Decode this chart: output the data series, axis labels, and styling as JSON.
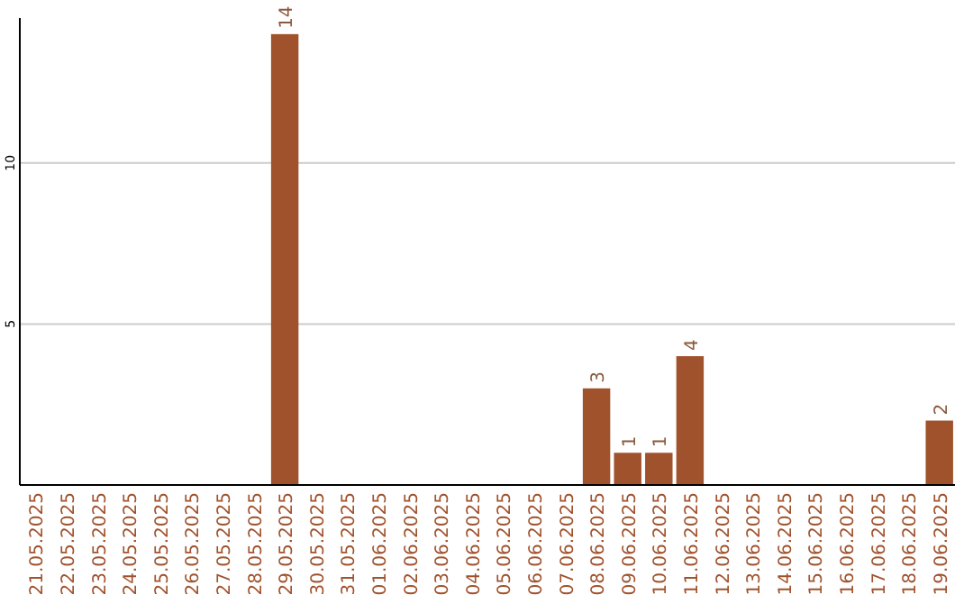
{
  "chart_data": {
    "type": "bar",
    "categories": [
      "21.05.2025",
      "22.05.2025",
      "23.05.2025",
      "24.05.2025",
      "25.05.2025",
      "26.05.2025",
      "27.05.2025",
      "28.05.2025",
      "29.05.2025",
      "30.05.2025",
      "31.05.2025",
      "01.06.2025",
      "02.06.2025",
      "03.06.2025",
      "04.06.2025",
      "05.06.2025",
      "06.06.2025",
      "07.06.2025",
      "08.06.2025",
      "09.06.2025",
      "10.06.2025",
      "11.06.2025",
      "12.06.2025",
      "13.06.2025",
      "14.06.2025",
      "15.06.2025",
      "16.06.2025",
      "17.06.2025",
      "18.06.2025",
      "19.06.2025"
    ],
    "values": [
      0,
      0,
      0,
      0,
      0,
      0,
      0,
      0,
      14,
      0,
      0,
      0,
      0,
      0,
      0,
      0,
      0,
      0,
      3,
      1,
      1,
      4,
      0,
      0,
      0,
      0,
      0,
      0,
      0,
      2
    ],
    "value_labels": [
      null,
      null,
      null,
      null,
      null,
      null,
      null,
      null,
      "14",
      null,
      null,
      null,
      null,
      null,
      null,
      null,
      null,
      null,
      "3",
      "1",
      "1",
      "4",
      null,
      null,
      null,
      null,
      null,
      null,
      null,
      "2"
    ],
    "color": "#a0522d",
    "ylim": [
      0,
      14.5
    ],
    "yticks": [
      5,
      10
    ],
    "grid": "y"
  }
}
